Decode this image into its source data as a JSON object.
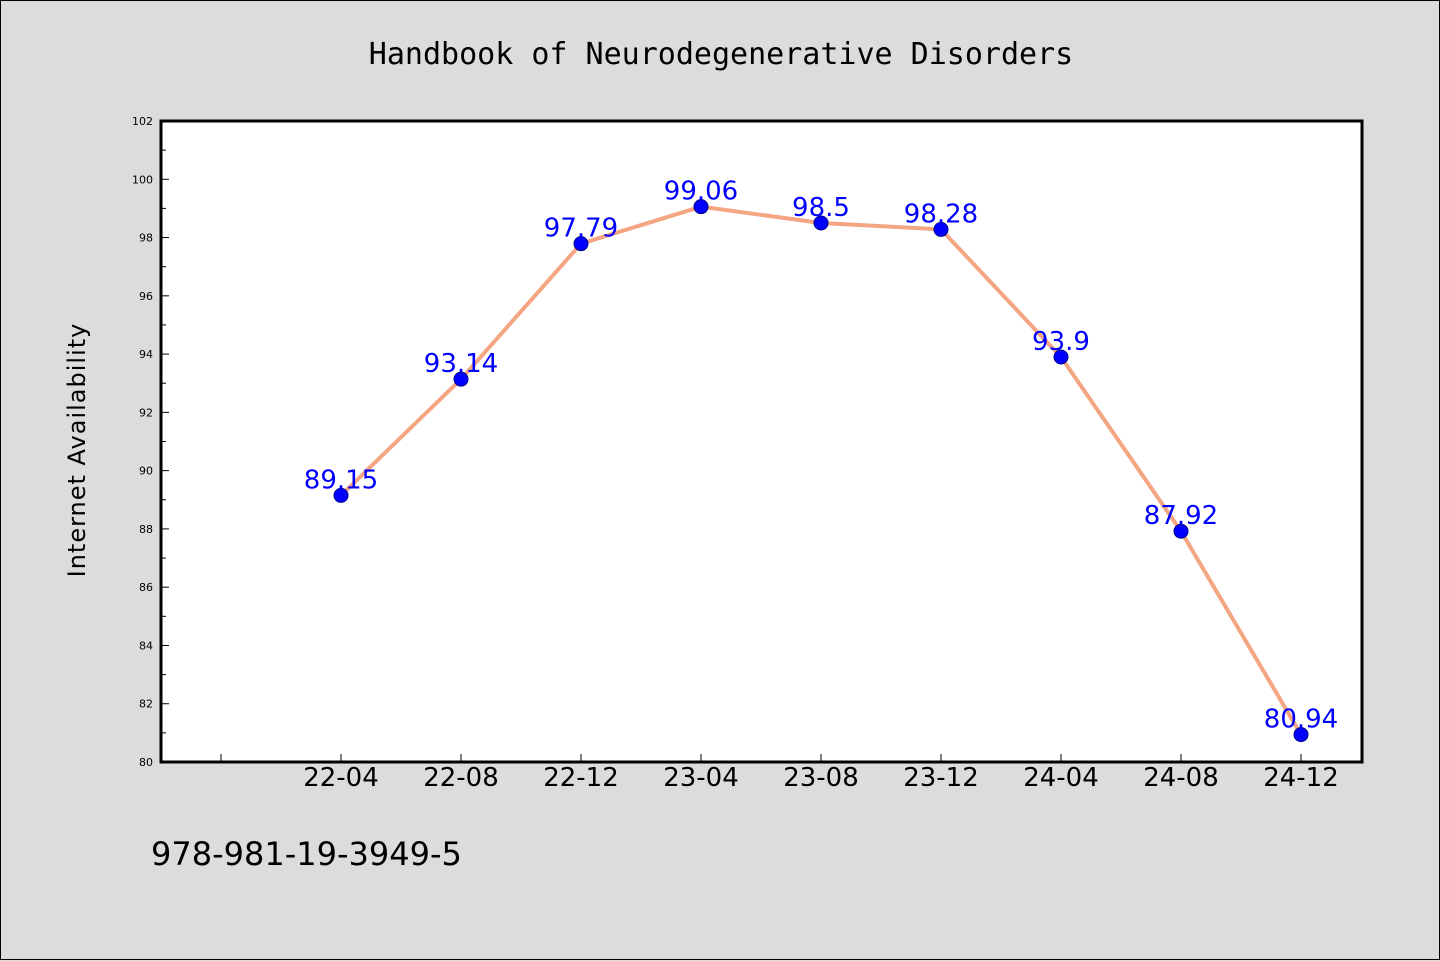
{
  "chart_data": {
    "type": "line",
    "title": "Handbook of Neurodegenerative Disorders",
    "xlabel": "",
    "ylabel": "Internet Availability",
    "categories": [
      "22-04",
      "22-08",
      "22-12",
      "23-04",
      "23-08",
      "23-12",
      "24-04",
      "24-08",
      "24-12"
    ],
    "values": [
      89.15,
      93.14,
      97.79,
      99.06,
      98.5,
      98.28,
      93.9,
      87.92,
      80.94
    ],
    "data_labels": [
      "89.15",
      "93.14",
      "97.79",
      "99.06",
      "98.5",
      "98.28",
      "93.9",
      "87.92",
      "80.94"
    ],
    "ylim": [
      80,
      102
    ],
    "yticks": [
      80,
      82,
      84,
      86,
      88,
      90,
      92,
      94,
      96,
      98,
      100,
      102
    ],
    "grid": false,
    "legend": "none",
    "colors": {
      "line": "#f4a582",
      "marker": "#0000ff",
      "data_label": "#0000ff",
      "background": "#dcdcdc",
      "plot_background": "#ffffff"
    }
  },
  "footer": {
    "isbn": "978-981-19-3949-5"
  }
}
